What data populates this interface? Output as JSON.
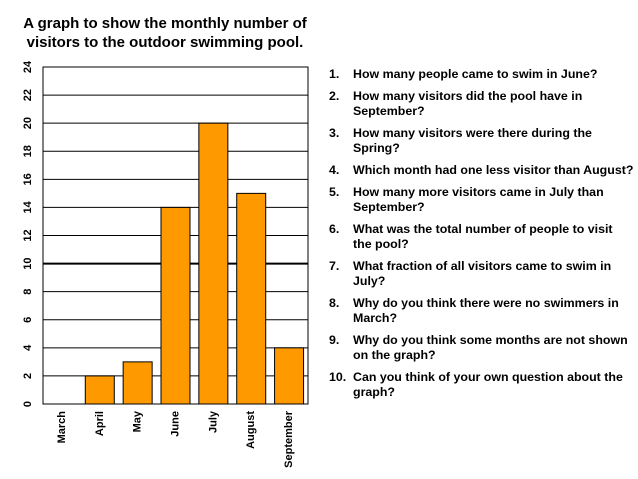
{
  "chart_data": {
    "type": "bar",
    "title": "A graph to show the monthly number of visitors to the outdoor swimming pool.",
    "categories": [
      "March",
      "April",
      "May",
      "June",
      "July",
      "August",
      "September"
    ],
    "values": [
      0,
      2,
      3,
      14,
      20,
      15,
      4
    ],
    "ylim": [
      0,
      24
    ],
    "yticks": [
      "0",
      "2",
      "4",
      "6",
      "8",
      "10",
      "12",
      "14",
      "16",
      "18",
      "20",
      "22",
      "24"
    ],
    "xlabel": "",
    "ylabel": "",
    "grid": true,
    "bar_color": "#ff9900"
  },
  "questions": [
    {
      "num": "1.",
      "text": "How many people came to swim in June?"
    },
    {
      "num": "2.",
      "text": "How many visitors did the pool have in September?"
    },
    {
      "num": "3.",
      "text": "How many visitors were there during the Spring?"
    },
    {
      "num": "4.",
      "text": "Which month had one less visitor than August?"
    },
    {
      "num": "5.",
      "text": "How many more visitors came in July than September?"
    },
    {
      "num": "6.",
      "text": "What was the total number of people to visit the pool?"
    },
    {
      "num": "7.",
      "text": "What fraction of all visitors came to swim in July?"
    },
    {
      "num": "8.",
      "text": "Why do you think there were no swimmers in March?"
    },
    {
      "num": "9.",
      "text": "Why do you think some months are not shown on the graph?"
    },
    {
      "num": "10.",
      "text": "Can you think of your own question about the graph?"
    }
  ]
}
